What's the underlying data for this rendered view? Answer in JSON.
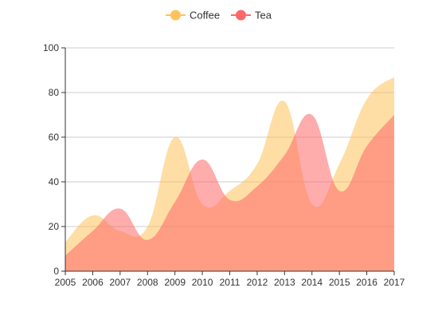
{
  "chart_data": {
    "type": "area",
    "x": [
      "2005",
      "2006",
      "2007",
      "2008",
      "2009",
      "2010",
      "2011",
      "2012",
      "2013",
      "2014",
      "2015",
      "2016",
      "2017"
    ],
    "series": [
      {
        "name": "Coffee",
        "color": "#fdc35b",
        "values": [
          13,
          25,
          18,
          20,
          60,
          30,
          36,
          48,
          76,
          30,
          48,
          77,
          87
        ]
      },
      {
        "name": "Tea",
        "color": "#fd6767",
        "values": [
          7,
          18,
          28,
          14,
          31,
          50,
          32,
          38,
          52,
          70,
          36,
          56,
          70
        ]
      }
    ],
    "ylim": [
      0,
      100
    ],
    "yticks": [
      0,
      20,
      40,
      60,
      80,
      100
    ],
    "grid": true,
    "legend": "top-center",
    "smooth": true,
    "xlabel": "",
    "ylabel": ""
  }
}
